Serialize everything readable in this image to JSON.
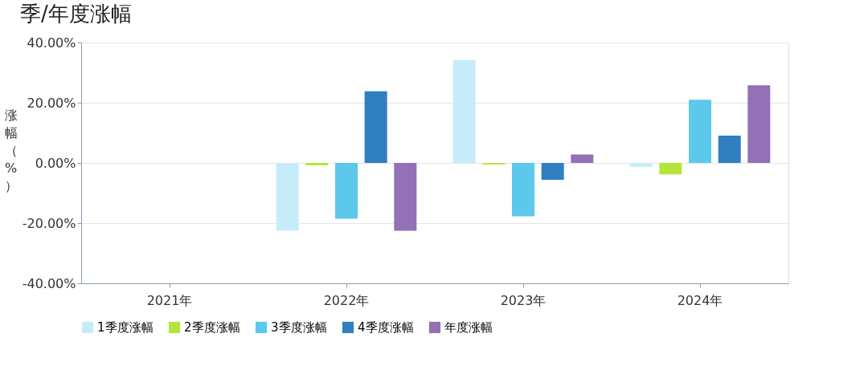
{
  "chart_data": {
    "type": "bar",
    "title": "季/年度涨幅",
    "ylabel": "涨幅（%）",
    "categories": [
      "2021年",
      "2022年",
      "2023年",
      "2024年"
    ],
    "series": [
      {
        "name": "1季度涨幅",
        "color": "#c6ecfa",
        "values": [
          null,
          -22.5,
          34.2,
          -1.3
        ]
      },
      {
        "name": "2季度涨幅",
        "color": "#b5e43c",
        "values": [
          null,
          -0.8,
          -0.5,
          -3.8
        ]
      },
      {
        "name": "3季度涨幅",
        "color": "#5bc8ec",
        "values": [
          null,
          -18.5,
          -17.7,
          21.0
        ]
      },
      {
        "name": "4季度涨幅",
        "color": "#2f7fc1",
        "values": [
          null,
          23.8,
          -5.6,
          9.1
        ]
      },
      {
        "name": "年度涨幅",
        "color": "#9271b6",
        "values": [
          null,
          -22.5,
          2.8,
          25.8
        ]
      }
    ],
    "ylim": [
      -40,
      40
    ],
    "yticks": [
      {
        "value": -40,
        "label": "-40.00%"
      },
      {
        "value": -20,
        "label": "-20.00%"
      },
      {
        "value": 0,
        "label": "0.00%"
      },
      {
        "value": 20,
        "label": "20.00%"
      },
      {
        "value": 40,
        "label": "40.00%"
      }
    ],
    "grid": "y",
    "legend": "bottom"
  }
}
